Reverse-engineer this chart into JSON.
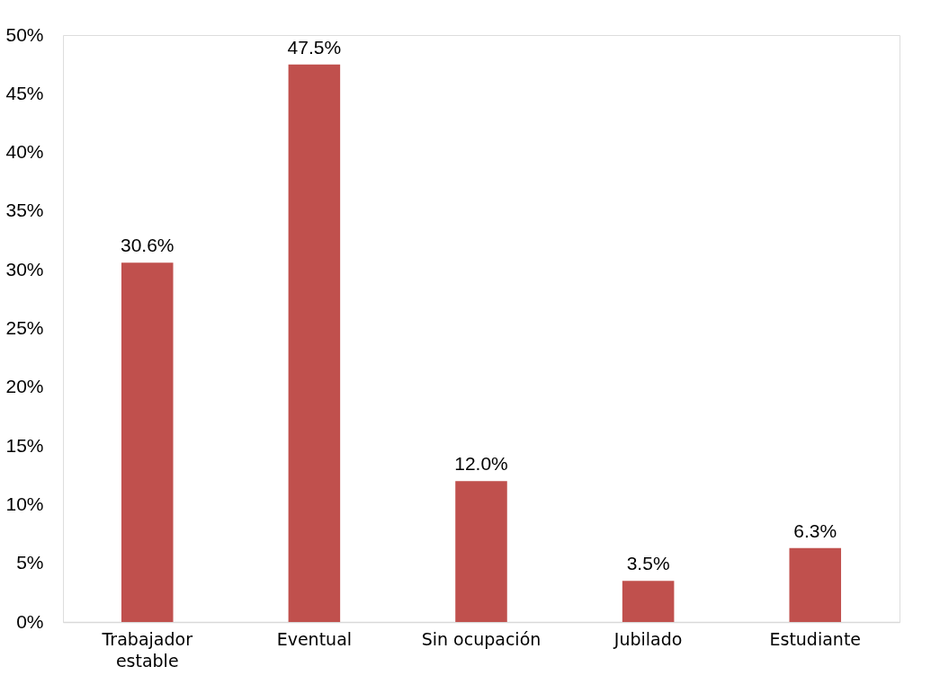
{
  "chart_data": {
    "type": "bar",
    "categories": [
      "Trabajador estable",
      "Eventual",
      "Sin ocupación",
      "Jubilado",
      "Estudiante"
    ],
    "values": [
      30.6,
      47.5,
      12.0,
      3.5,
      6.3
    ],
    "value_labels": [
      "30.6%",
      "47.5%",
      "12.0%",
      "3.5%",
      "6.3%"
    ],
    "color": "#c0504d",
    "ylim": [
      0,
      50
    ],
    "yticks": [
      {
        "value": 0,
        "label": "0%"
      },
      {
        "value": 5,
        "label": "5%"
      },
      {
        "value": 10,
        "label": "10%"
      },
      {
        "value": 15,
        "label": "15%"
      },
      {
        "value": 20,
        "label": "20%"
      },
      {
        "value": 25,
        "label": "25%"
      },
      {
        "value": 30,
        "label": "30%"
      },
      {
        "value": 35,
        "label": "35%"
      },
      {
        "value": 40,
        "label": "40%"
      },
      {
        "value": 45,
        "label": "45%"
      },
      {
        "value": 50,
        "label": "50%"
      }
    ],
    "grid": false
  }
}
